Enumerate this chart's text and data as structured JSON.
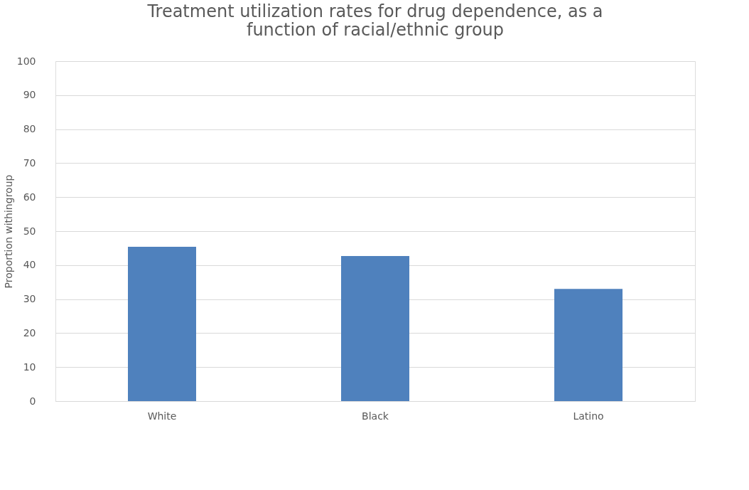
{
  "chart_data": {
    "type": "bar",
    "title": "Treatment utilization rates for drug dependence, as a function of racial/ethnic group",
    "categories": [
      "White",
      "Black",
      "Latino"
    ],
    "values": [
      45.4,
      42.7,
      33.0
    ],
    "color": "#4f81bd",
    "ylabel": "Proportion withingroup",
    "ylim": [
      0,
      100
    ],
    "yticks": [
      0,
      10,
      20,
      30,
      40,
      50,
      60,
      70,
      80,
      90,
      100
    ],
    "grid": "y"
  }
}
